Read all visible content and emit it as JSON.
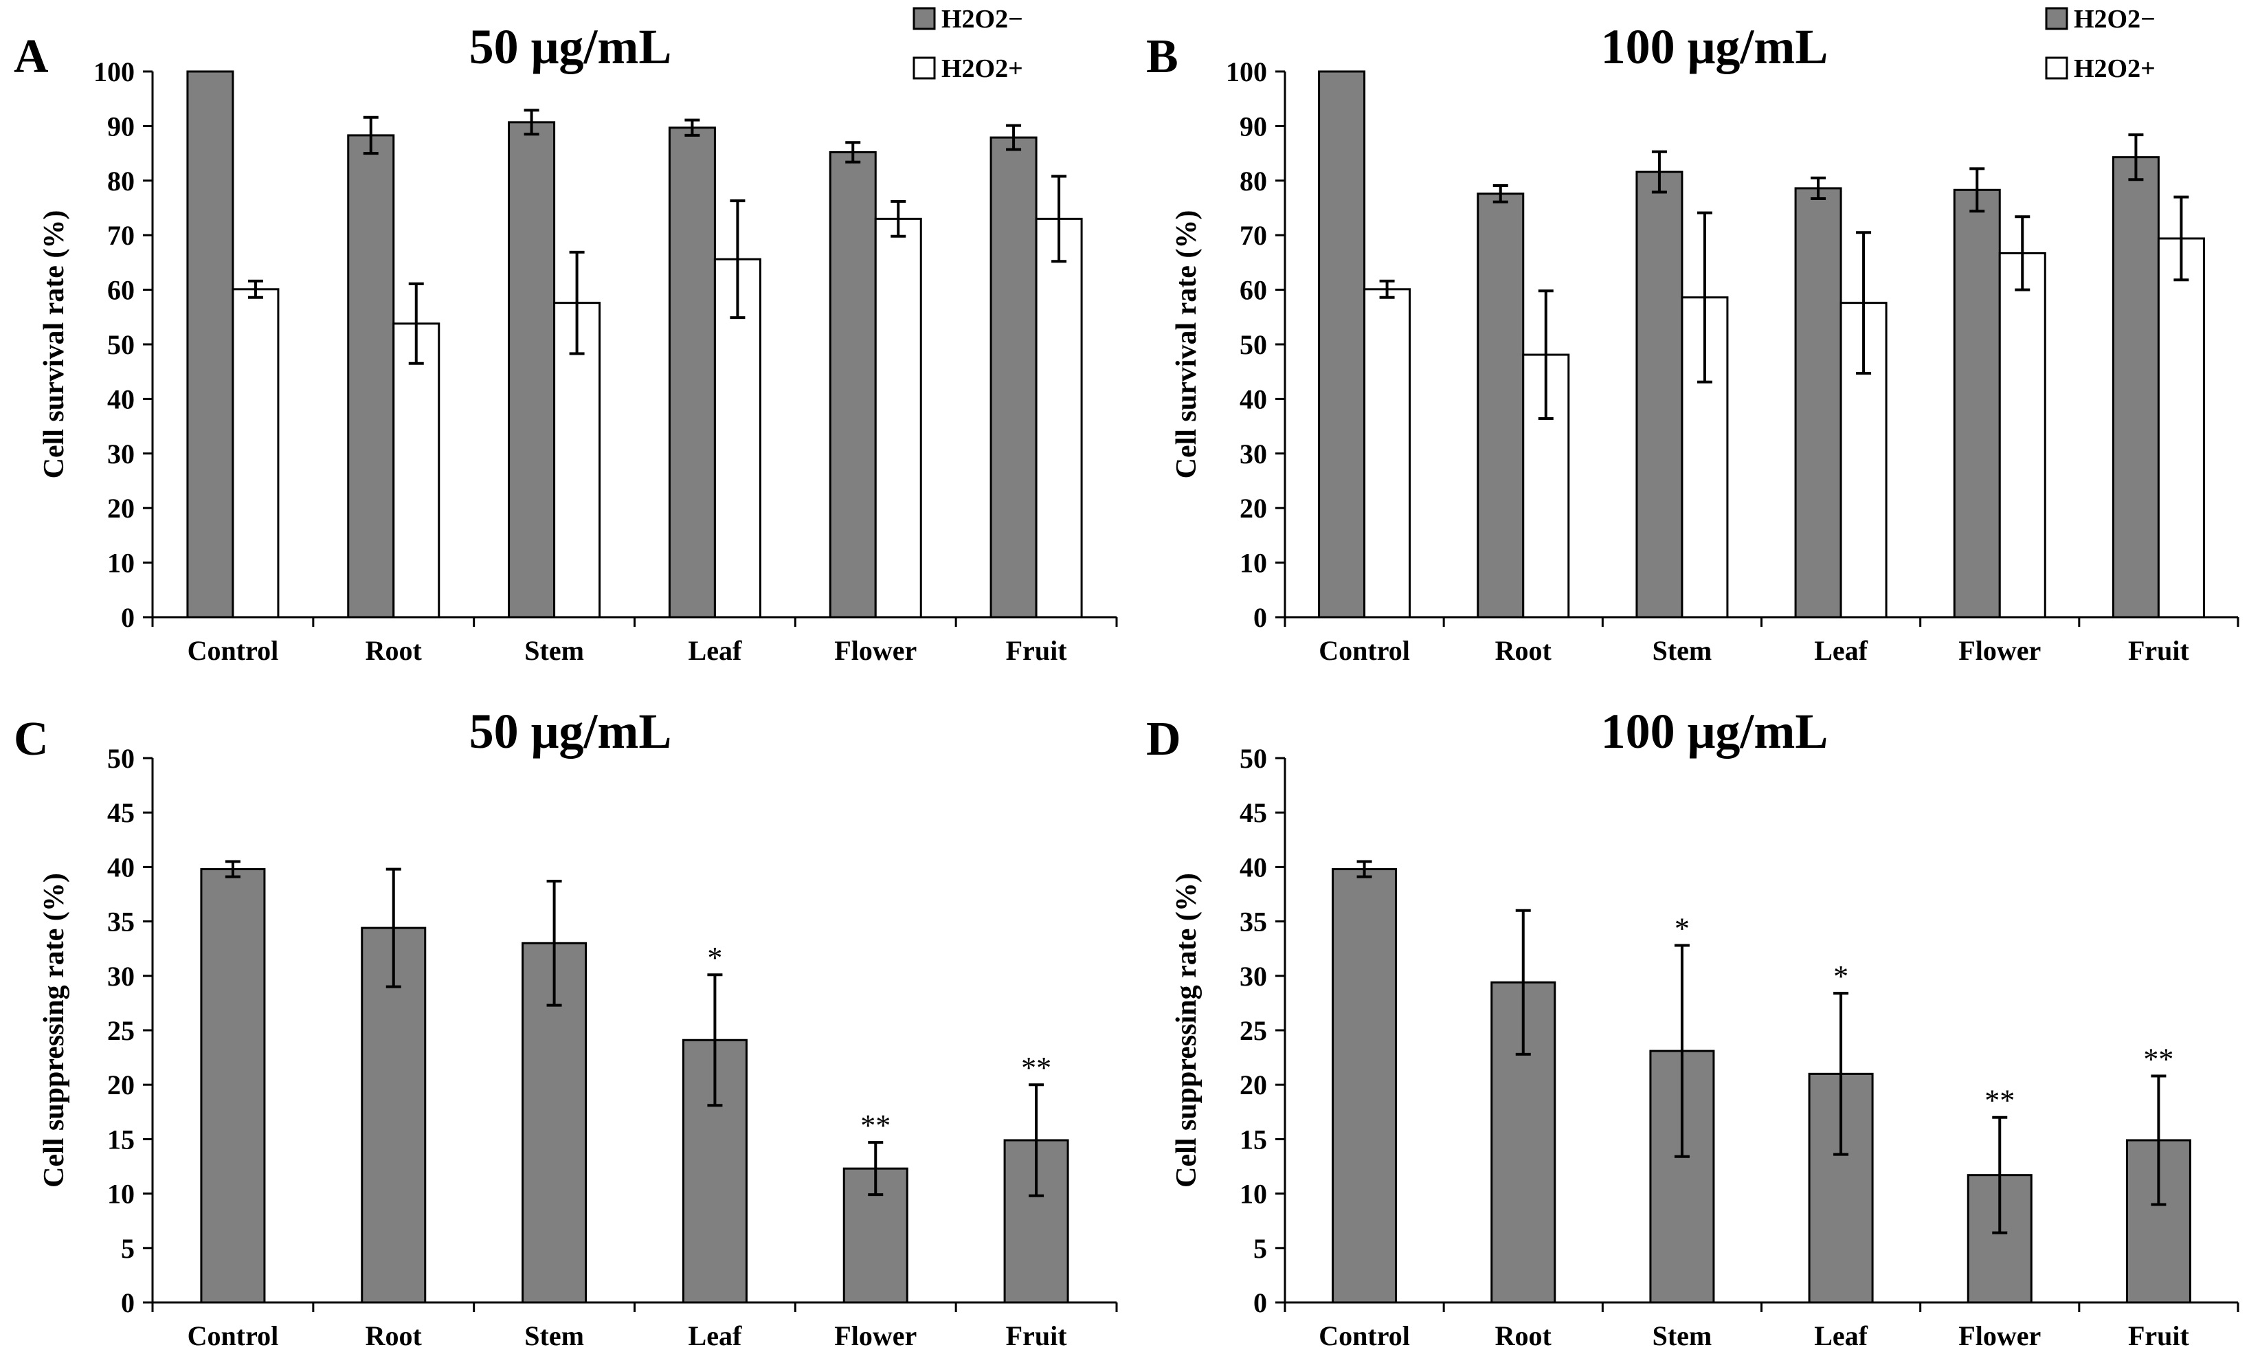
{
  "colors": {
    "dark_bar": "#808080",
    "light_bar": "#ffffff",
    "stroke": "#000000"
  },
  "chart_data": [
    {
      "panel": "A",
      "type": "bar",
      "title": "50 μg/mL",
      "ylabel": "Cell survival rate (%)",
      "xlabel": "",
      "ylim": [
        0,
        100
      ],
      "yticks": [
        0,
        10,
        20,
        30,
        40,
        50,
        60,
        70,
        80,
        90,
        100
      ],
      "categories": [
        "Control",
        "Root",
        "Stem",
        "Leaf",
        "Flower",
        "Fruit"
      ],
      "legend": [
        "H2O2−",
        "H2O2+"
      ],
      "series": [
        {
          "name": "H2O2−",
          "values": [
            100,
            88.3,
            90.7,
            89.7,
            85.2,
            87.9
          ],
          "errors": [
            0,
            3.3,
            2.2,
            1.4,
            1.8,
            2.2
          ]
        },
        {
          "name": "H2O2+",
          "values": [
            60.1,
            53.8,
            57.6,
            65.6,
            73.0,
            73.0
          ],
          "errors": [
            1.5,
            7.3,
            9.3,
            10.7,
            3.2,
            7.8
          ]
        }
      ],
      "annotations": []
    },
    {
      "panel": "B",
      "type": "bar",
      "title": "100 μg/mL",
      "ylabel": "Cell survival rate (%)",
      "xlabel": "",
      "ylim": [
        0,
        100
      ],
      "yticks": [
        0,
        10,
        20,
        30,
        40,
        50,
        60,
        70,
        80,
        90,
        100
      ],
      "categories": [
        "Control",
        "Root",
        "Stem",
        "Leaf",
        "Flower",
        "Fruit"
      ],
      "legend": [
        "H2O2−",
        "H2O2+"
      ],
      "series": [
        {
          "name": "H2O2−",
          "values": [
            100,
            77.6,
            81.6,
            78.6,
            78.3,
            84.3
          ],
          "errors": [
            0,
            1.5,
            3.7,
            1.9,
            3.9,
            4.1
          ]
        },
        {
          "name": "H2O2+",
          "values": [
            60.1,
            48.1,
            58.6,
            57.6,
            66.7,
            69.4
          ],
          "errors": [
            1.5,
            11.7,
            15.5,
            12.9,
            6.7,
            7.6
          ]
        }
      ],
      "annotations": []
    },
    {
      "panel": "C",
      "type": "bar",
      "title": "50 μg/mL",
      "ylabel": "Cell suppressing rate (%)",
      "xlabel": "",
      "ylim": [
        0,
        50
      ],
      "yticks": [
        0,
        5,
        10,
        15,
        20,
        25,
        30,
        35,
        40,
        45,
        50
      ],
      "categories": [
        "Control",
        "Root",
        "Stem",
        "Leaf",
        "Flower",
        "Fruit"
      ],
      "series": [
        {
          "name": "Cell suppressing rate",
          "values": [
            39.8,
            34.4,
            33.0,
            24.1,
            12.3,
            14.9
          ],
          "errors": [
            0.7,
            5.4,
            5.7,
            6.0,
            2.4,
            5.1
          ]
        }
      ],
      "annotations": [
        "",
        "",
        "",
        "*",
        "**",
        "**"
      ]
    },
    {
      "panel": "D",
      "type": "bar",
      "title": "100 μg/mL",
      "ylabel": "Cell suppressing rate (%)",
      "xlabel": "",
      "ylim": [
        0,
        50
      ],
      "yticks": [
        0,
        5,
        10,
        15,
        20,
        25,
        30,
        35,
        40,
        45,
        50
      ],
      "categories": [
        "Control",
        "Root",
        "Stem",
        "Leaf",
        "Flower",
        "Fruit"
      ],
      "series": [
        {
          "name": "Cell suppressing rate",
          "values": [
            39.8,
            29.4,
            23.1,
            21.0,
            11.7,
            14.9
          ],
          "errors": [
            0.7,
            6.6,
            9.7,
            7.4,
            5.3,
            5.9
          ]
        }
      ],
      "annotations": [
        "",
        "",
        "*",
        "*",
        "**",
        "**"
      ]
    }
  ]
}
